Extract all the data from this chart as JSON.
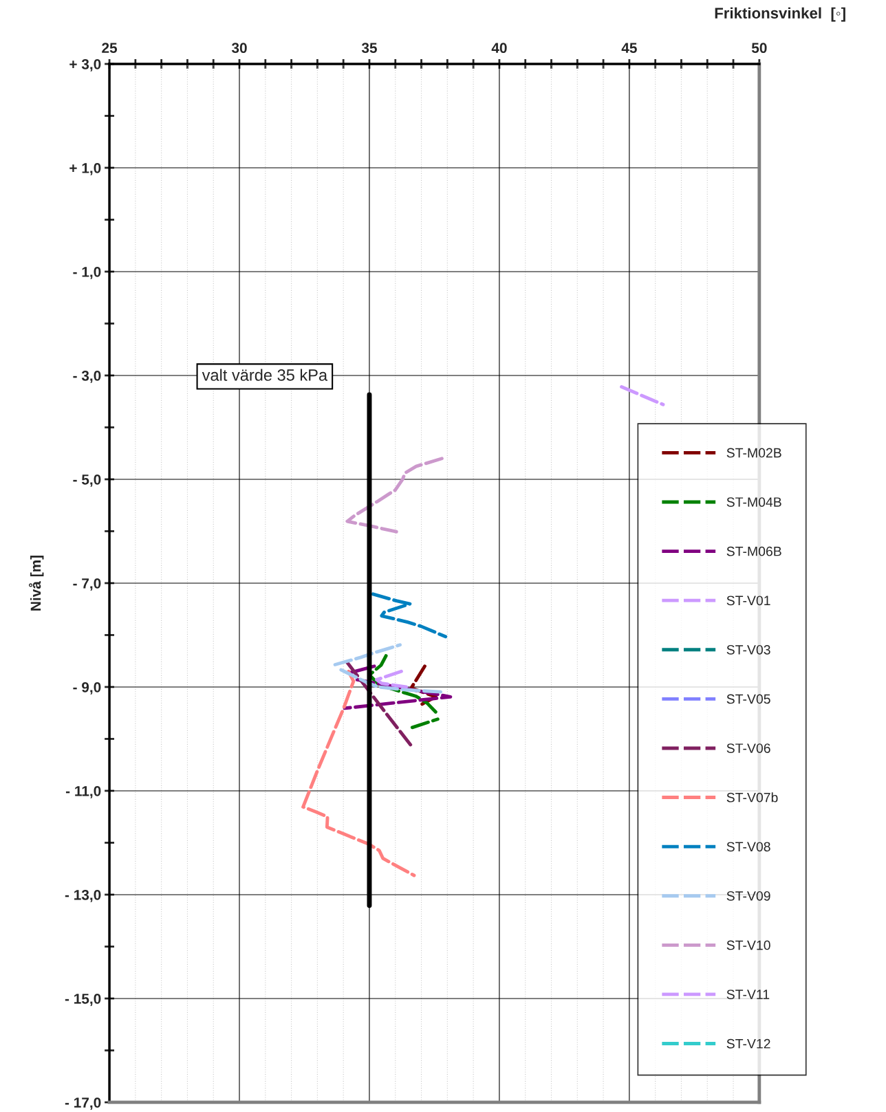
{
  "chart_data": {
    "type": "line",
    "xlabel": "Friktionsvinkel  [◦]",
    "ylabel": "Nivå [m]",
    "xlim": [
      25,
      50
    ],
    "ylim": [
      -17,
      3
    ],
    "xticks": [
      25,
      {
        "value": 26,
        "label": null
      },
      {
        "value": 27,
        "label": null
      },
      {
        "value": 28,
        "label": null
      },
      {
        "value": 29,
        "label": null
      },
      30,
      {
        "value": 31,
        "label": null
      },
      {
        "value": 32,
        "label": null
      },
      {
        "value": 33,
        "label": null
      },
      {
        "value": 34,
        "label": null
      },
      35,
      {
        "value": 36,
        "label": null
      },
      {
        "value": 37,
        "label": null
      },
      {
        "value": 38,
        "label": null
      },
      {
        "value": 39,
        "label": null
      },
      40,
      {
        "value": 41,
        "label": null
      },
      {
        "value": 42,
        "label": null
      },
      {
        "value": 43,
        "label": null
      },
      {
        "value": 44,
        "label": null
      },
      45,
      {
        "value": 46,
        "label": null
      },
      {
        "value": 47,
        "label": null
      },
      {
        "value": 48,
        "label": null
      },
      {
        "value": 49,
        "label": null
      },
      50
    ],
    "yticks": [
      {
        "value": 3,
        "label": "+ 3,0"
      },
      {
        "value": 2,
        "label": null
      },
      {
        "value": 1,
        "label": "+ 1,0"
      },
      {
        "value": 0,
        "label": null
      },
      {
        "value": -1,
        "label": "- 1,0"
      },
      {
        "value": -2,
        "label": null
      },
      {
        "value": -3,
        "label": "- 3,0"
      },
      {
        "value": -4,
        "label": null
      },
      {
        "value": -5,
        "label": "- 5,0"
      },
      {
        "value": -6,
        "label": null
      },
      {
        "value": -7,
        "label": "- 7,0"
      },
      {
        "value": -8,
        "label": null
      },
      {
        "value": -9,
        "label": "- 9,0"
      },
      {
        "value": -10,
        "label": null
      },
      {
        "value": -11,
        "label": "- 11,0"
      },
      {
        "value": -12,
        "label": null
      },
      {
        "value": -13,
        "label": "- 13,0"
      },
      {
        "value": -14,
        "label": null
      },
      {
        "value": -15,
        "label": "- 15,0"
      },
      {
        "value": -16,
        "label": null
      },
      {
        "value": -17,
        "label": "- 17,0"
      }
    ],
    "grid": true,
    "legend": "right",
    "line_style": "dashed",
    "marker": "none",
    "annotations": [
      "valt värde 35 kPa"
    ],
    "series": [
      {
        "name": "ST-M02B",
        "color": "#800000",
        "x": [
          37.13,
          36.61,
          37.55,
          37.03
        ],
        "values": [
          -8.6,
          -9.02,
          -9.19,
          -9.33
        ]
      },
      {
        "name": "ST-M04B",
        "color": "#008000",
        "x": [
          35.64,
          35.45,
          35.0,
          35.38,
          36.28,
          36.8,
          37.22,
          37.55,
          null,
          36.65,
          37.63
        ],
        "values": [
          -8.4,
          -8.58,
          -8.77,
          -8.96,
          -9.1,
          -9.18,
          -9.31,
          -9.48,
          null,
          -9.78,
          -9.62
        ]
      },
      {
        "name": "ST-M06B",
        "color": "#800080",
        "x": [
          34.29,
          35.19,
          null,
          34.53,
          38.12,
          37.55,
          34.05
        ],
        "values": [
          -8.72,
          -8.6,
          null,
          -8.86,
          -9.19,
          -9.22,
          -9.41
        ]
      },
      {
        "name": "ST-V01",
        "color": "#cc99ff"
      },
      {
        "name": "ST-V03",
        "color": "#008080"
      },
      {
        "name": "ST-V05",
        "color": "#8080ff"
      },
      {
        "name": "ST-V06",
        "color": "#802060",
        "x": [
          34.15,
          35.66,
          36.61
        ],
        "values": [
          -8.53,
          -9.52,
          -10.13
        ]
      },
      {
        "name": "ST-V07b",
        "color": "#ff8080",
        "x": [
          34.2,
          34.39,
          34.2,
          34.01,
          33.63,
          33.02,
          32.45,
          32.97,
          33.39,
          33.37,
          34.01,
          34.95,
          35.38,
          35.52,
          36.13,
          36.72
        ],
        "values": [
          -8.7,
          -8.89,
          -9.15,
          -9.41,
          -9.86,
          -10.59,
          -11.31,
          -11.41,
          -11.5,
          -11.7,
          -11.83,
          -12.02,
          -12.15,
          -12.3,
          -12.47,
          -12.63
        ]
      },
      {
        "name": "ST-V08",
        "color": "#0080c0",
        "x": [
          35.14,
          36.04,
          36.56,
          35.57,
          35.47,
          36.47,
          36.98,
          37.93
        ],
        "values": [
          -7.21,
          -7.34,
          -7.4,
          -7.56,
          -7.63,
          -7.75,
          -7.83,
          -8.03
        ]
      },
      {
        "name": "ST-V09",
        "color": "#a6caf0",
        "x": [
          33.68,
          34.67,
          35.19,
          36.18,
          null,
          33.91,
          34.81,
          35.33,
          36.32,
          36.89,
          37.88
        ],
        "values": [
          -8.57,
          -8.43,
          -8.34,
          -8.19,
          null,
          -8.67,
          -8.89,
          -9.0,
          -9.05,
          -9.07,
          -9.1
        ]
      },
      {
        "name": "ST-V10",
        "color": "#cc99cc",
        "x": [
          37.79,
          36.8,
          36.37,
          36.28,
          35.99,
          35.76,
          35.33,
          34.43,
          34.15,
          35.14,
          35.66,
          36.04
        ],
        "values": [
          -4.6,
          -4.75,
          -4.88,
          -5.0,
          -5.21,
          -5.28,
          -5.42,
          -5.7,
          -5.81,
          -5.91,
          -5.97,
          -6.01
        ]
      },
      {
        "name": "ST-V11",
        "color": "#cc99ff",
        "x": [
          44.7,
          46.3,
          null,
          36.23,
          35.28,
          35.47,
          36.42
        ],
        "values": [
          -3.22,
          -3.56,
          null,
          -8.7,
          -8.86,
          -8.93,
          -9.0
        ]
      },
      {
        "name": "ST-V12",
        "color": "#33cccc"
      },
      {
        "color": "#000000",
        "line_style": "solid",
        "x": [
          35,
          35
        ],
        "values": [
          -3.37,
          -13.21
        ]
      }
    ]
  }
}
